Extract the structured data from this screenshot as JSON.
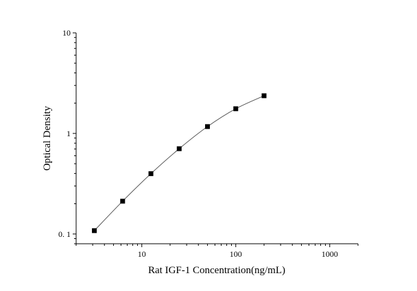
{
  "chart_data": {
    "type": "scatter",
    "title": "",
    "xlabel": "Rat IGF-1  Concentration(ng/mL)",
    "ylabel": "Optical Density",
    "xscale": "log",
    "yscale": "log",
    "xlim": [
      2,
      2000
    ],
    "ylim": [
      0.08,
      10
    ],
    "xticks": [
      10,
      100,
      1000
    ],
    "xtick_labels": [
      "10",
      "100",
      "1000"
    ],
    "yticks": [
      0.1,
      1,
      10
    ],
    "ytick_labels": [
      "0. 1",
      "1",
      "10"
    ],
    "grid": false,
    "legend": "none",
    "fit_curve": true,
    "marker": "square",
    "marker_color": "#000000",
    "curve_color": "#555555",
    "series": [
      {
        "x": [
          3.125,
          6.25,
          12.5,
          25,
          50,
          100,
          200
        ],
        "y": [
          0.108,
          0.212,
          0.398,
          0.705,
          1.17,
          1.76,
          2.37
        ]
      }
    ]
  }
}
